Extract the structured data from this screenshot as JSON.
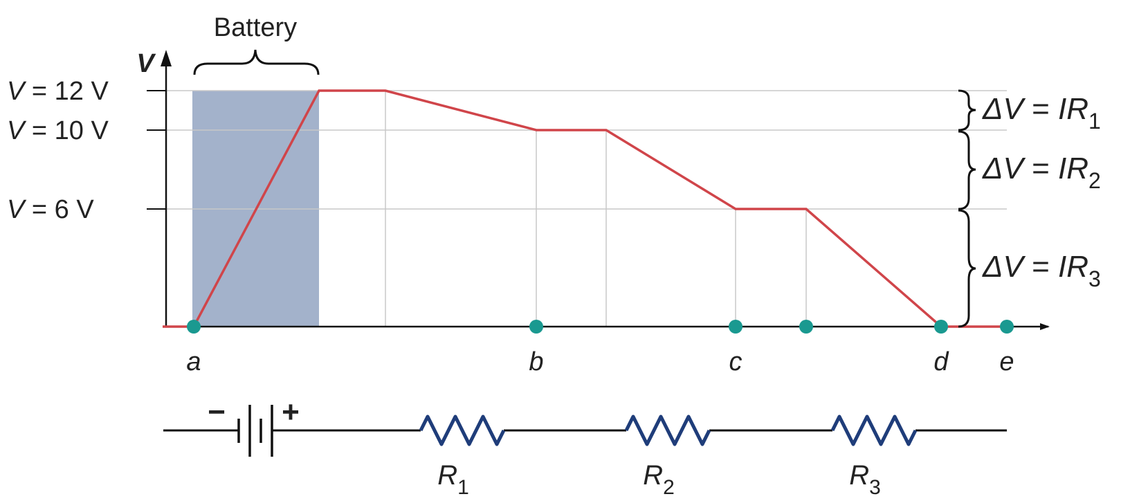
{
  "battery_label": "Battery",
  "axis": {
    "v_label": "V"
  },
  "y_ticks": [
    {
      "var": "V",
      "eq": " = 12 V",
      "value": 12
    },
    {
      "var": "V",
      "eq": " = 10 V",
      "value": 10
    },
    {
      "var": "V",
      "eq": " = 6 V",
      "value": 6
    }
  ],
  "points": [
    {
      "label": "a"
    },
    {
      "label": "b"
    },
    {
      "label": "c"
    },
    {
      "label": "d"
    },
    {
      "label": "e"
    }
  ],
  "drops": [
    {
      "delta": "ΔV",
      "eq": " = ",
      "var": "IR",
      "sub": "1"
    },
    {
      "delta": "ΔV",
      "eq": " = ",
      "var": "IR",
      "sub": "2"
    },
    {
      "delta": "ΔV",
      "eq": " = ",
      "var": "IR",
      "sub": "3"
    }
  ],
  "circuit": {
    "minus": "−",
    "plus": "+",
    "resistors": [
      {
        "var": "R",
        "sub": "1"
      },
      {
        "var": "R",
        "sub": "2"
      },
      {
        "var": "R",
        "sub": "3"
      }
    ]
  },
  "colors": {
    "potential_line": "#d0454a",
    "battery_fill": "#a3b2cb",
    "node_dot": "#1a9990",
    "resistor": "#1f3d7a",
    "grid": "#c8c8c8",
    "axis": "#111111"
  }
}
